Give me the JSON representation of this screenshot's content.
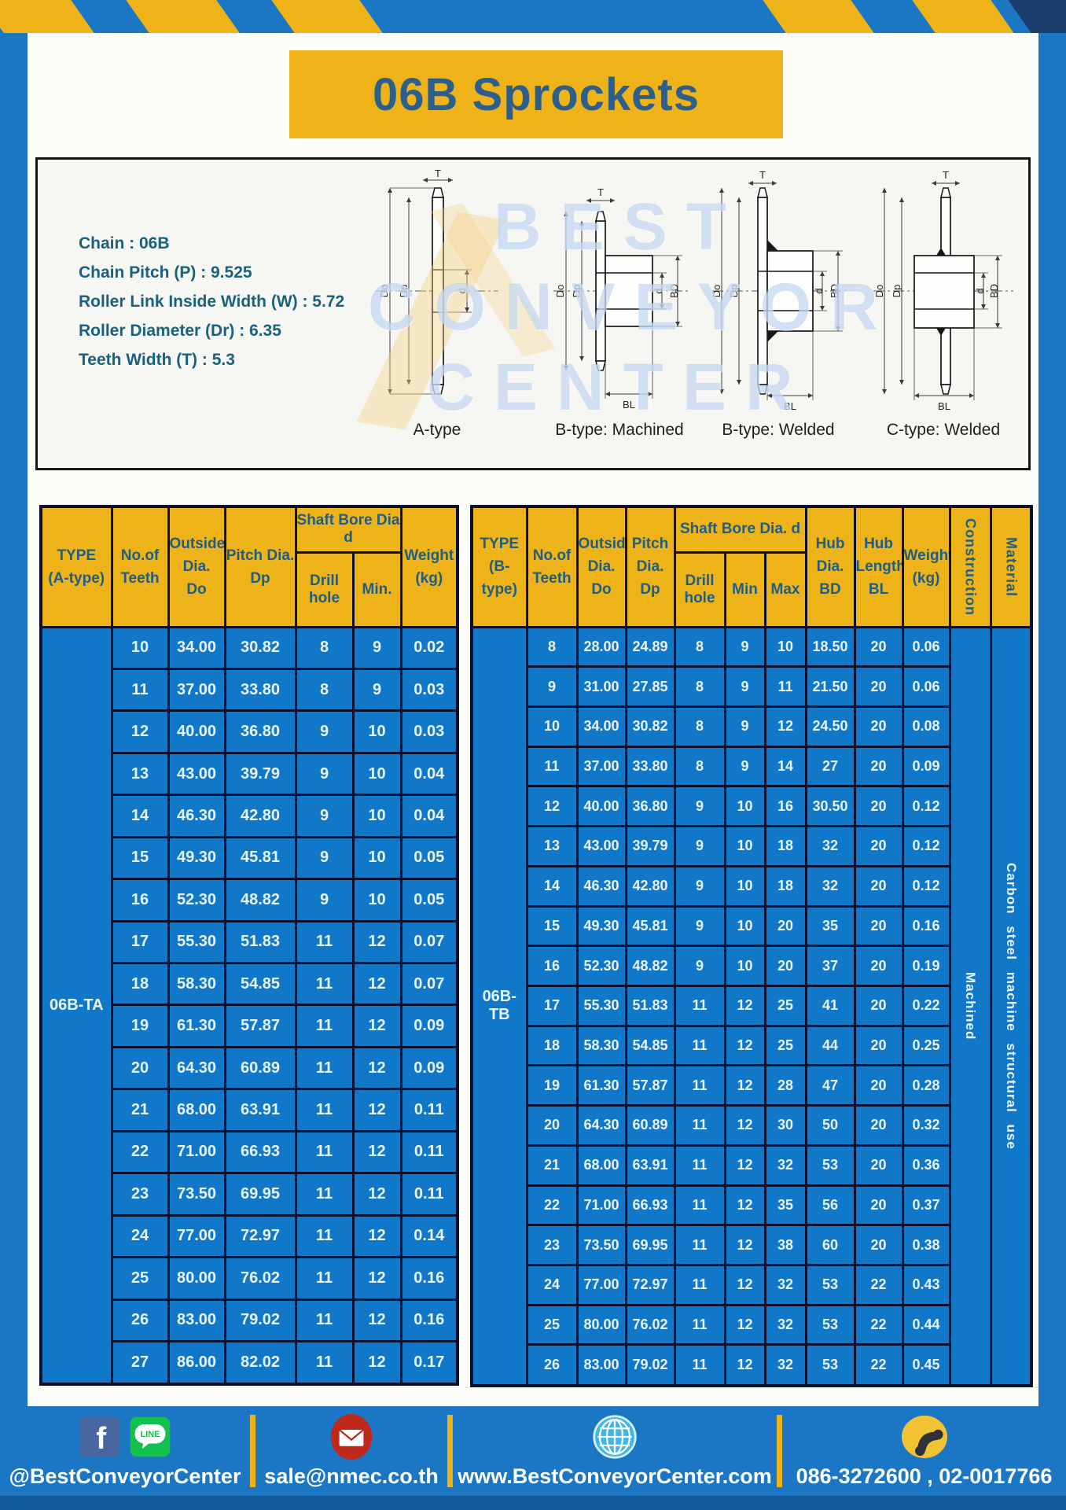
{
  "title": "06B Sprockets",
  "specs": {
    "chain": "Chain : 06B",
    "pitch": "Chain Pitch (P) : 9.525",
    "roller_width": "Roller Link Inside Width (W) : 5.72",
    "roller_dia": "Roller Diameter (Dr) : 6.35",
    "teeth_width": "Teeth Width (T) : 5.3"
  },
  "watermark": {
    "line1": "BEST",
    "line2": "CONVEYOR",
    "line3": "CENTER"
  },
  "diagrams": {
    "a_type": {
      "label": "A-type",
      "dim_t": "T",
      "dim_do": "Do",
      "dim_dp": "Dp",
      "dim_d": "d"
    },
    "b_machined": {
      "label": "B-type: Machined",
      "dim_t": "T",
      "dim_do": "Do",
      "dim_dp": "Dp",
      "dim_d": "d",
      "dim_bd": "BD",
      "dim_bl": "BL"
    },
    "b_welded": {
      "label": "B-type: Welded",
      "dim_t": "T",
      "dim_do": "Do",
      "dim_dp": "Dp",
      "dim_d": "d",
      "dim_bd": "BD",
      "dim_bl": "BL"
    },
    "c_welded": {
      "label": "C-type: Welded",
      "dim_t": "T",
      "dim_do": "Do",
      "dim_dp": "Dp",
      "dim_d": "d",
      "dim_bd": "BD",
      "dim_bl": "BL"
    }
  },
  "table_a": {
    "header": {
      "type_line1": "TYPE",
      "type_line2": "(A-type)",
      "teeth_line1": "No.of",
      "teeth_line2": "Teeth",
      "outside_line1": "Outside",
      "outside_line2": "Dia.",
      "outside_line3": "Do",
      "pitch_line1": "Pitch Dia.",
      "pitch_line2": "Dp",
      "shaft_bore": "Shaft Bore Dia d",
      "drill_hole": "Drill hole",
      "min": "Min.",
      "weight_line1": "Weight",
      "weight_line2": "(kg)"
    },
    "type_label": "06B-TA",
    "rows": [
      [
        "10",
        "34.00",
        "30.82",
        "8",
        "9",
        "0.02"
      ],
      [
        "11",
        "37.00",
        "33.80",
        "8",
        "9",
        "0.03"
      ],
      [
        "12",
        "40.00",
        "36.80",
        "9",
        "10",
        "0.03"
      ],
      [
        "13",
        "43.00",
        "39.79",
        "9",
        "10",
        "0.04"
      ],
      [
        "14",
        "46.30",
        "42.80",
        "9",
        "10",
        "0.04"
      ],
      [
        "15",
        "49.30",
        "45.81",
        "9",
        "10",
        "0.05"
      ],
      [
        "16",
        "52.30",
        "48.82",
        "9",
        "10",
        "0.05"
      ],
      [
        "17",
        "55.30",
        "51.83",
        "11",
        "12",
        "0.07"
      ],
      [
        "18",
        "58.30",
        "54.85",
        "11",
        "12",
        "0.07"
      ],
      [
        "19",
        "61.30",
        "57.87",
        "11",
        "12",
        "0.09"
      ],
      [
        "20",
        "64.30",
        "60.89",
        "11",
        "12",
        "0.09"
      ],
      [
        "21",
        "68.00",
        "63.91",
        "11",
        "12",
        "0.11"
      ],
      [
        "22",
        "71.00",
        "66.93",
        "11",
        "12",
        "0.11"
      ],
      [
        "23",
        "73.50",
        "69.95",
        "11",
        "12",
        "0.11"
      ],
      [
        "24",
        "77.00",
        "72.97",
        "11",
        "12",
        "0.14"
      ],
      [
        "25",
        "80.00",
        "76.02",
        "11",
        "12",
        "0.16"
      ],
      [
        "26",
        "83.00",
        "79.02",
        "11",
        "12",
        "0.16"
      ],
      [
        "27",
        "86.00",
        "82.02",
        "11",
        "12",
        "0.17"
      ]
    ]
  },
  "table_b": {
    "header": {
      "type_line1": "TYPE",
      "type_line2": "(B-type)",
      "teeth_line1": "No.of",
      "teeth_line2": "Teeth",
      "outside_line1": "Outside",
      "outside_line2": "Dia.",
      "outside_line3": "Do",
      "pitch_line1": "Pitch",
      "pitch_line2": "Dia.",
      "pitch_line3": "Dp",
      "shaft_bore": "Shaft Bore Dia. d",
      "drill_hole": "Drill hole",
      "min": "Min",
      "max": "Max",
      "hub_dia_line1": "Hub",
      "hub_dia_line2": "Dia.",
      "hub_dia_line3": "BD",
      "hub_len_line1": "Hub",
      "hub_len_line2": "Length",
      "hub_len_line3": "BL",
      "weight_line1": "Weight",
      "weight_line2": "(kg)",
      "construction": "Construction",
      "material": "Material"
    },
    "type_label": "06B-TB",
    "construction_value": "Machined",
    "material_value": "Carbon steel machine structural use",
    "rows": [
      [
        "8",
        "28.00",
        "24.89",
        "8",
        "9",
        "10",
        "18.50",
        "20",
        "0.06"
      ],
      [
        "9",
        "31.00",
        "27.85",
        "8",
        "9",
        "11",
        "21.50",
        "20",
        "0.06"
      ],
      [
        "10",
        "34.00",
        "30.82",
        "8",
        "9",
        "12",
        "24.50",
        "20",
        "0.08"
      ],
      [
        "11",
        "37.00",
        "33.80",
        "8",
        "9",
        "14",
        "27",
        "20",
        "0.09"
      ],
      [
        "12",
        "40.00",
        "36.80",
        "9",
        "10",
        "16",
        "30.50",
        "20",
        "0.12"
      ],
      [
        "13",
        "43.00",
        "39.79",
        "9",
        "10",
        "18",
        "32",
        "20",
        "0.12"
      ],
      [
        "14",
        "46.30",
        "42.80",
        "9",
        "10",
        "18",
        "32",
        "20",
        "0.12"
      ],
      [
        "15",
        "49.30",
        "45.81",
        "9",
        "10",
        "20",
        "35",
        "20",
        "0.16"
      ],
      [
        "16",
        "52.30",
        "48.82",
        "9",
        "10",
        "20",
        "37",
        "20",
        "0.19"
      ],
      [
        "17",
        "55.30",
        "51.83",
        "11",
        "12",
        "25",
        "41",
        "20",
        "0.22"
      ],
      [
        "18",
        "58.30",
        "54.85",
        "11",
        "12",
        "25",
        "44",
        "20",
        "0.25"
      ],
      [
        "19",
        "61.30",
        "57.87",
        "11",
        "12",
        "28",
        "47",
        "20",
        "0.28"
      ],
      [
        "20",
        "64.30",
        "60.89",
        "11",
        "12",
        "30",
        "50",
        "20",
        "0.32"
      ],
      [
        "21",
        "68.00",
        "63.91",
        "11",
        "12",
        "32",
        "53",
        "20",
        "0.36"
      ],
      [
        "22",
        "71.00",
        "66.93",
        "11",
        "12",
        "35",
        "56",
        "20",
        "0.37"
      ],
      [
        "23",
        "73.50",
        "69.95",
        "11",
        "12",
        "38",
        "60",
        "20",
        "0.38"
      ],
      [
        "24",
        "77.00",
        "72.97",
        "11",
        "12",
        "32",
        "53",
        "22",
        "0.43"
      ],
      [
        "25",
        "80.00",
        "76.02",
        "11",
        "12",
        "32",
        "53",
        "22",
        "0.44"
      ],
      [
        "26",
        "83.00",
        "79.02",
        "11",
        "12",
        "32",
        "53",
        "22",
        "0.45"
      ]
    ]
  },
  "footer": {
    "facebook_glyph": "f",
    "line_icon_text": "LINE",
    "social_handle": "@BestConveyorCenter",
    "email": "sale@nmec.co.th",
    "website": "www.BestConveyorCenter.com",
    "phone": "086-3272600 , 02-0017766"
  },
  "colors": {
    "frame_blue": "#1b77c4",
    "table_blue": "#1177c8",
    "accent_yellow": "#edb319",
    "dark_navy": "#1d3d6d",
    "border_navy": "#0a102e",
    "header_text": "#1e5e86",
    "title_text": "#2d5f8c",
    "bottom_strip": "#0f5a9b"
  }
}
